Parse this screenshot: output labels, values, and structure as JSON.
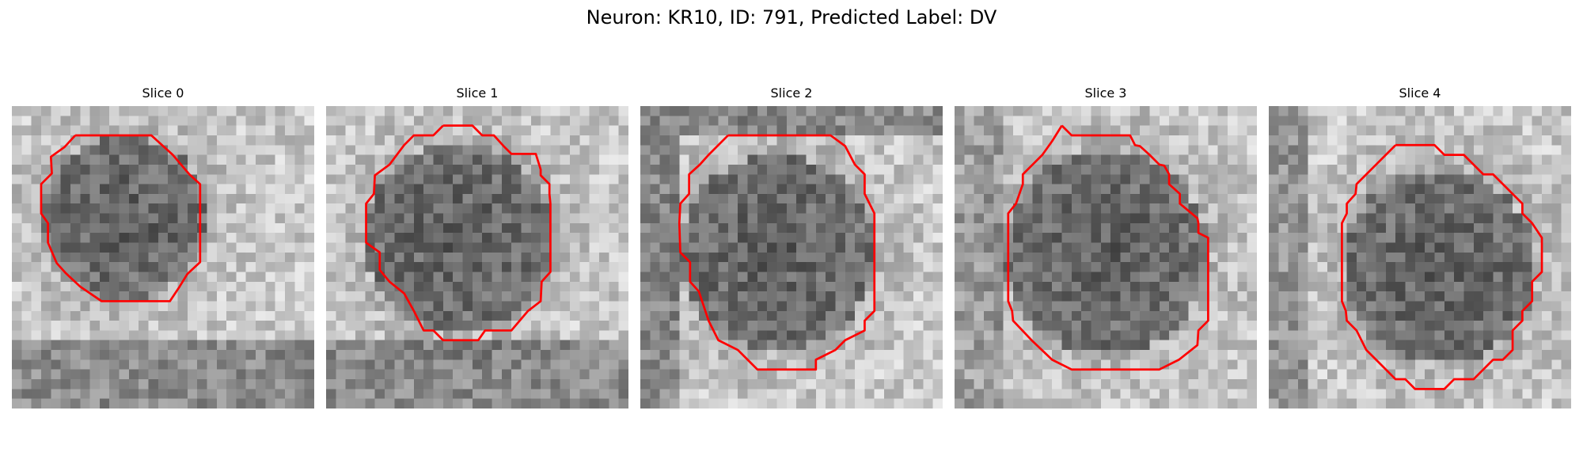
{
  "figure": {
    "title": "Neuron: KR10, ID: 791, Predicted Label: DV"
  },
  "colors": {
    "background": "#ffffff",
    "contour": "#ff0000",
    "text": "#000000"
  },
  "panels": [
    {
      "title": "Slice 0"
    },
    {
      "title": "Slice 1"
    },
    {
      "title": "Slice 2"
    },
    {
      "title": "Slice 3"
    },
    {
      "title": "Slice 4"
    }
  ]
}
